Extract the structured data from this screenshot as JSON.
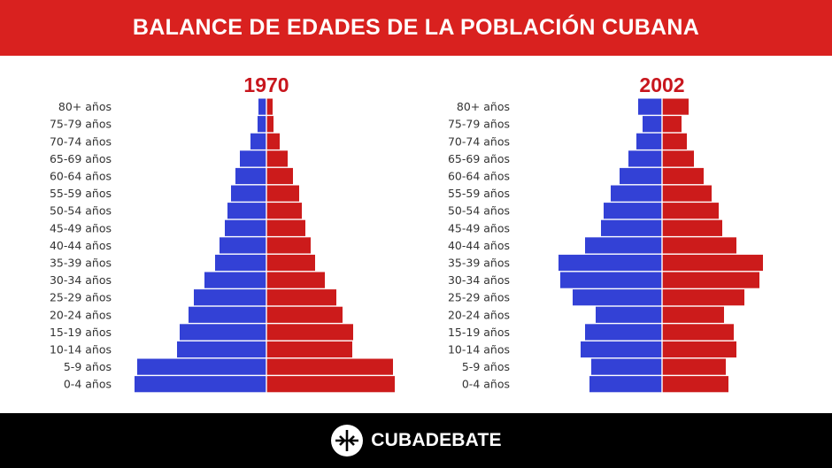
{
  "title": "BALANCE DE EDADES DE LA POBLACIÓN CUBANA",
  "brand": {
    "name": "CUBADEBATE",
    "logo_icon": "cubadebate-logo-icon"
  },
  "colors": {
    "header": "#d9211f",
    "left_bars": "#3341d6",
    "right_bars": "#cc1b1b",
    "year_label": "#c8161d",
    "footer": "#000000"
  },
  "chart_data": [
    {
      "type": "bar",
      "title": "1970",
      "orientation": "population-pyramid",
      "categories": [
        "80+ años",
        "75-79 años",
        "70-74 años",
        "65-69 años",
        "60-64 años",
        "55-59 años",
        "50-54 años",
        "45-49 años",
        "40-44 años",
        "35-39 años",
        "30-34 años",
        "25-29 años",
        "20-24 años",
        "15-19 años",
        "10-14 años",
        "5-9 años",
        "0-4 años"
      ],
      "series": [
        {
          "side": "left",
          "values": [
            9,
            10,
            18,
            30,
            35,
            40,
            44,
            47,
            53,
            58,
            70,
            82,
            88,
            98,
            101,
            146,
            149
          ]
        },
        {
          "side": "right",
          "values": [
            7,
            8,
            15,
            24,
            30,
            37,
            40,
            44,
            50,
            55,
            66,
            79,
            86,
            98,
            97,
            143,
            145
          ]
        }
      ]
    },
    {
      "type": "bar",
      "title": "2002",
      "orientation": "population-pyramid",
      "categories": [
        "80+ años",
        "75-79 años",
        "70-74 años",
        "65-69 años",
        "60-64 años",
        "55-59 años",
        "50-54 años",
        "45-49 años",
        "40-44 años",
        "35-39 años",
        "30-34 años",
        "25-29 años",
        "20-24 años",
        "15-19 años",
        "10-14 años",
        "5-9 años",
        "0-4 años"
      ],
      "series": [
        {
          "side": "left",
          "values": [
            27,
            22,
            29,
            38,
            48,
            58,
            66,
            69,
            87,
            117,
            115,
            101,
            75,
            87,
            92,
            80,
            82
          ]
        },
        {
          "side": "right",
          "values": [
            30,
            22,
            28,
            36,
            47,
            56,
            64,
            68,
            84,
            114,
            110,
            93,
            70,
            81,
            84,
            72,
            75
          ]
        }
      ]
    }
  ]
}
